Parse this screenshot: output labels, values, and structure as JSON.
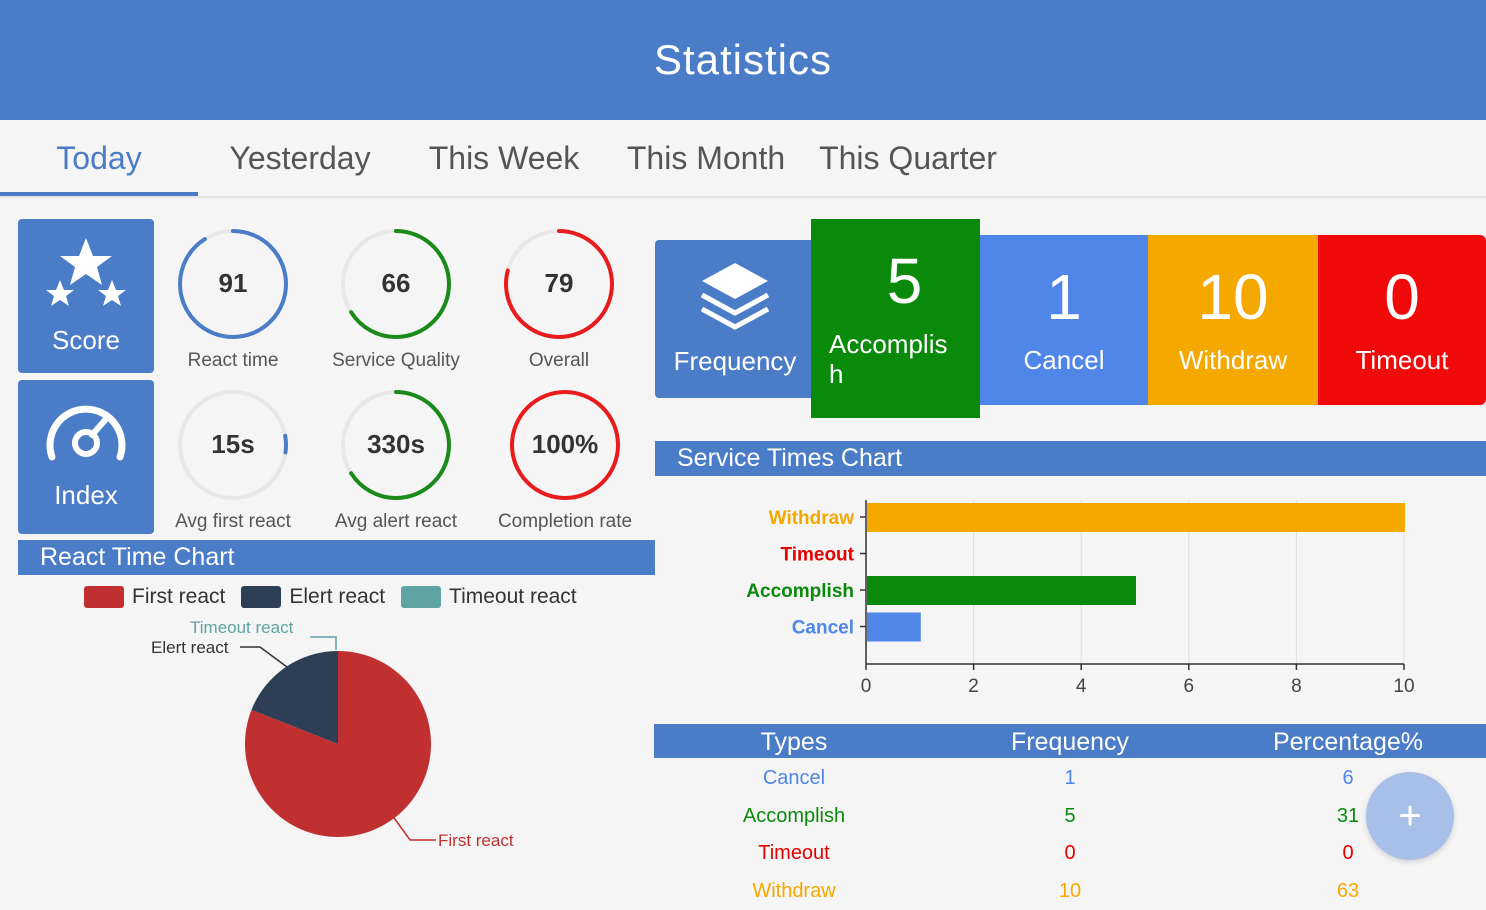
{
  "app": {
    "title": "Statistics"
  },
  "tabs": [
    "Today",
    "Yesterday",
    "This Week",
    "This Month",
    "This Quarter"
  ],
  "tiles": {
    "score": {
      "label": "Score",
      "icon": "stars-icon"
    },
    "index": {
      "label": "Index",
      "icon": "speedometer-icon"
    },
    "frequency": {
      "label": "Frequency",
      "icon": "layers-icon"
    }
  },
  "gauges": [
    {
      "value": "91",
      "label": "React time",
      "color": "#4a7cc7",
      "fill": 0.91
    },
    {
      "value": "66",
      "label": "Service Quality",
      "color": "#1a8a1a",
      "fill": 0.66
    },
    {
      "value": "79",
      "label": "Overall",
      "color": "#e81c1c",
      "fill": 0.79
    },
    {
      "value": "15s",
      "label": "Avg first react",
      "color": "#4a7cc7",
      "fill": 0.05
    },
    {
      "value": "330s",
      "label": "Avg alert react",
      "color": "#1a8a1a",
      "fill": 0.66
    },
    {
      "value": "100%",
      "label": "Completion rate",
      "color": "#e81c1c",
      "fill": 1.0
    }
  ],
  "react_chart": {
    "title": "React Time Chart",
    "legend": [
      {
        "name": "First react",
        "color": "#c03030"
      },
      {
        "name": "Elert react",
        "color": "#2e3f55"
      },
      {
        "name": "Timeout react",
        "color": "#5fa3a3"
      }
    ],
    "pie_labels": {
      "timeout": "Timeout react",
      "elert": "Elert react",
      "first": "First react"
    }
  },
  "freq_tiles": [
    {
      "number": "5",
      "label": "Accomplis\nh",
      "color": "#0a8a0a"
    },
    {
      "number": "1",
      "label": "Cancel",
      "color": "#4f86e8"
    },
    {
      "number": "10",
      "label": "Withdraw",
      "color": "#f5a800"
    },
    {
      "number": "0",
      "label": "Timeout",
      "color": "#f00a0a"
    }
  ],
  "service_chart": {
    "title": "Service Times Chart"
  },
  "chart_data": [
    {
      "type": "pie",
      "title": "React Time Chart",
      "categories": [
        "First react",
        "Elert react",
        "Timeout react"
      ],
      "values": [
        81,
        19,
        0
      ],
      "colors": [
        "#c03030",
        "#2e3f55",
        "#5fa3a3"
      ]
    },
    {
      "type": "bar",
      "orientation": "horizontal",
      "title": "Service Times Chart",
      "categories": [
        "Withdraw",
        "Timeout",
        "Accomplish",
        "Cancel"
      ],
      "values": [
        10,
        0,
        5,
        1
      ],
      "colors": [
        "#f5a800",
        "#e60000",
        "#0a8a0a",
        "#4f86e8"
      ],
      "xlim": [
        0,
        10
      ],
      "xticks": [
        "0",
        "2",
        "4",
        "6",
        "8",
        "10"
      ],
      "grid": true
    }
  ],
  "table": {
    "headers": [
      "Types",
      "Frequency",
      "Percentage%"
    ],
    "rows": [
      {
        "type": "Cancel",
        "freq": "1",
        "pct": "6",
        "color": "#4f86e8"
      },
      {
        "type": "Accomplish",
        "freq": "5",
        "pct": "31",
        "color": "#0a8a0a"
      },
      {
        "type": "Timeout",
        "freq": "0",
        "pct": "0",
        "color": "#e60000"
      },
      {
        "type": "Withdraw",
        "freq": "10",
        "pct": "63",
        "color": "#f5a800"
      }
    ]
  },
  "fab": {
    "label": "+"
  }
}
